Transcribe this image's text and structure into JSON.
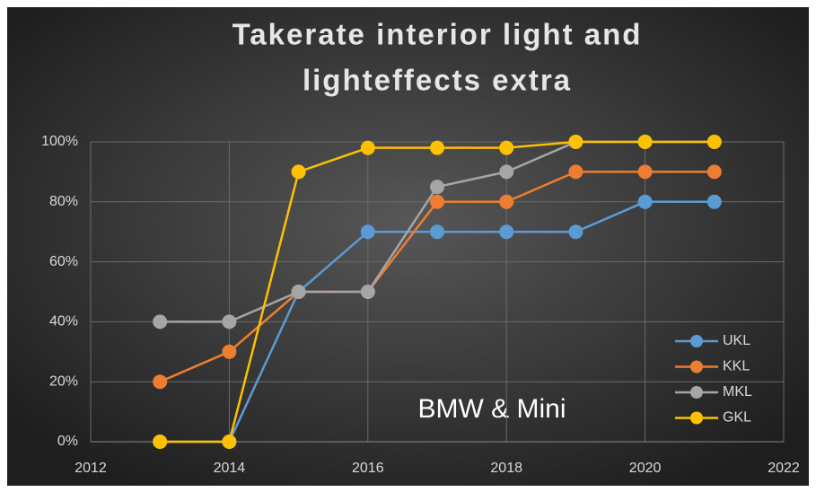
{
  "chart_data": {
    "type": "line",
    "title": [
      "Takerate interior light  and",
      "lighteffects extra"
    ],
    "annotation": "BMW & Mini",
    "x": [
      2013,
      2014,
      2015,
      2016,
      2017,
      2018,
      2019,
      2020,
      2021
    ],
    "series": [
      {
        "name": "UKL",
        "color": "#5b9bd5",
        "values": [
          0,
          0,
          50,
          70,
          70,
          70,
          70,
          80,
          80
        ]
      },
      {
        "name": "KKL",
        "color": "#ed7d31",
        "values": [
          20,
          30,
          50,
          50,
          80,
          80,
          90,
          90,
          90
        ]
      },
      {
        "name": "MKL",
        "color": "#a5a5a5",
        "values": [
          40,
          40,
          50,
          50,
          85,
          90,
          100,
          100,
          100
        ]
      },
      {
        "name": "GKL",
        "color": "#ffc000",
        "values": [
          0,
          0,
          90,
          98,
          98,
          98,
          100,
          100,
          100
        ]
      }
    ],
    "xlim": [
      2012,
      2022
    ],
    "xticks": [
      2012,
      2014,
      2016,
      2018,
      2020,
      2022
    ],
    "ylim": [
      0,
      100
    ],
    "yticks": [
      {
        "value": 0,
        "label": "0%"
      },
      {
        "value": 20,
        "label": "20%"
      },
      {
        "value": 40,
        "label": "40%"
      },
      {
        "value": 60,
        "label": "60%"
      },
      {
        "value": 80,
        "label": "80%"
      },
      {
        "value": 100,
        "label": "100%"
      }
    ],
    "grid": true,
    "legend": "lower right"
  }
}
